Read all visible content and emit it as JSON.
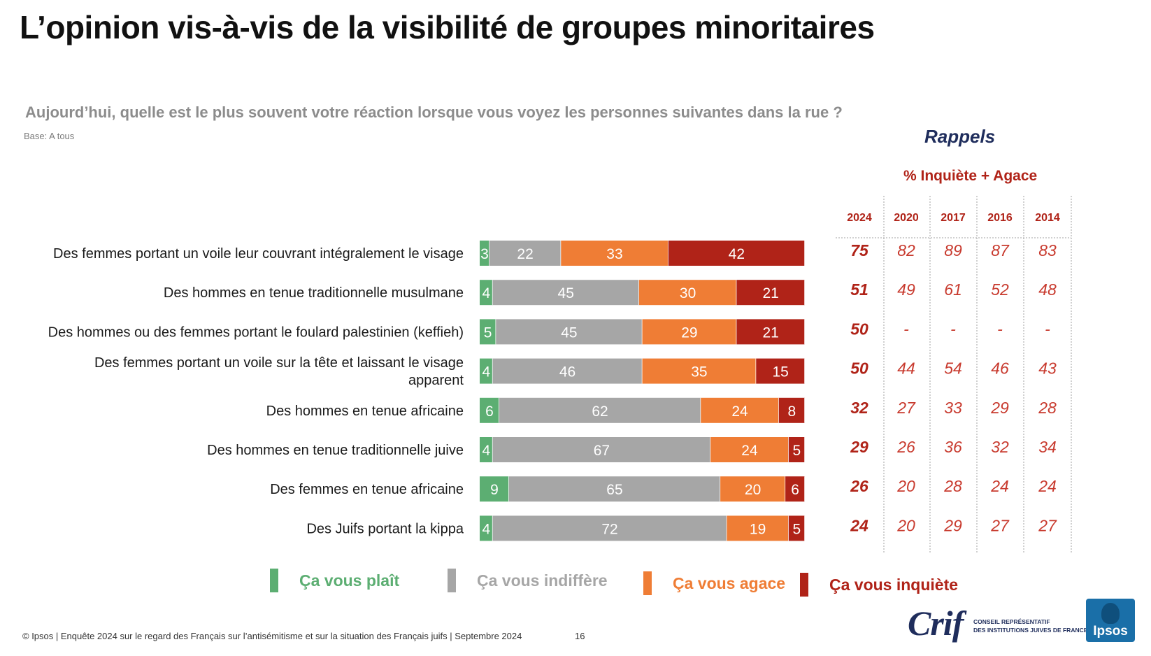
{
  "title": "L’opinion vis-à-vis de la visibilité de groupes minoritaires",
  "question": "Aujourd’hui, quelle est le plus souvent votre réaction lorsque vous voyez les personnes suivantes dans la rue ?",
  "base": "Base: A tous",
  "rappels": {
    "title": "Rappels",
    "subtitle": "% Inquiète + Agace",
    "years": [
      "2024",
      "2020",
      "2017",
      "2016",
      "2014"
    ],
    "rows": [
      [
        "75",
        "82",
        "89",
        "87",
        "83"
      ],
      [
        "51",
        "49",
        "61",
        "52",
        "48"
      ],
      [
        "50",
        "-",
        "-",
        "-",
        "-"
      ],
      [
        "50",
        "44",
        "54",
        "46",
        "43"
      ],
      [
        "32",
        "27",
        "33",
        "29",
        "28"
      ],
      [
        "29",
        "26",
        "36",
        "32",
        "34"
      ],
      [
        "26",
        "20",
        "28",
        "24",
        "24"
      ],
      [
        "24",
        "20",
        "29",
        "27",
        "27"
      ]
    ]
  },
  "chart_data": {
    "type": "bar",
    "orientation": "horizontal",
    "stacked": true,
    "categories": [
      [
        "Des femmes portant un voile leur couvrant intégralement le visage"
      ],
      [
        "Des hommes en tenue traditionnelle musulmane"
      ],
      [
        "Des hommes ou des femmes portant le foulard palestinien (keffieh)"
      ],
      [
        "Des femmes portant un voile sur la tête et laissant le visage",
        "apparent"
      ],
      [
        "Des hommes en tenue africaine"
      ],
      [
        "Des hommes en tenue traditionnelle juive"
      ],
      [
        "Des femmes en tenue africaine"
      ],
      [
        "Des Juifs portant la kippa"
      ]
    ],
    "series": [
      {
        "name": "Ça vous plaît",
        "color": "#5cae72",
        "values": [
          3,
          4,
          5,
          4,
          6,
          4,
          9,
          4
        ]
      },
      {
        "name": "Ça vous indiffère",
        "color": "#a6a6a6",
        "values": [
          22,
          45,
          45,
          46,
          62,
          67,
          65,
          72
        ]
      },
      {
        "name": "Ça vous agace",
        "color": "#ef7d35",
        "values": [
          33,
          30,
          29,
          35,
          24,
          24,
          20,
          19
        ]
      },
      {
        "name": "Ça vous inquiète",
        "color": "#b02318",
        "values": [
          42,
          21,
          21,
          15,
          8,
          5,
          6,
          5
        ]
      }
    ],
    "xlim": [
      0,
      100
    ],
    "legend": "bottom"
  },
  "footer": "© Ipsos | Enquête 2024 sur le regard des Français sur l’antisémitisme et sur la situation des Français juifs | Septembre 2024",
  "page_number": "16",
  "logos": {
    "crif": "Crif",
    "crif_subtitle": [
      "CONSEIL REPRÉSENTATIF",
      "DES INSTITUTIONS JUIVES DE FRANCE"
    ],
    "ipsos": "Ipsos"
  }
}
